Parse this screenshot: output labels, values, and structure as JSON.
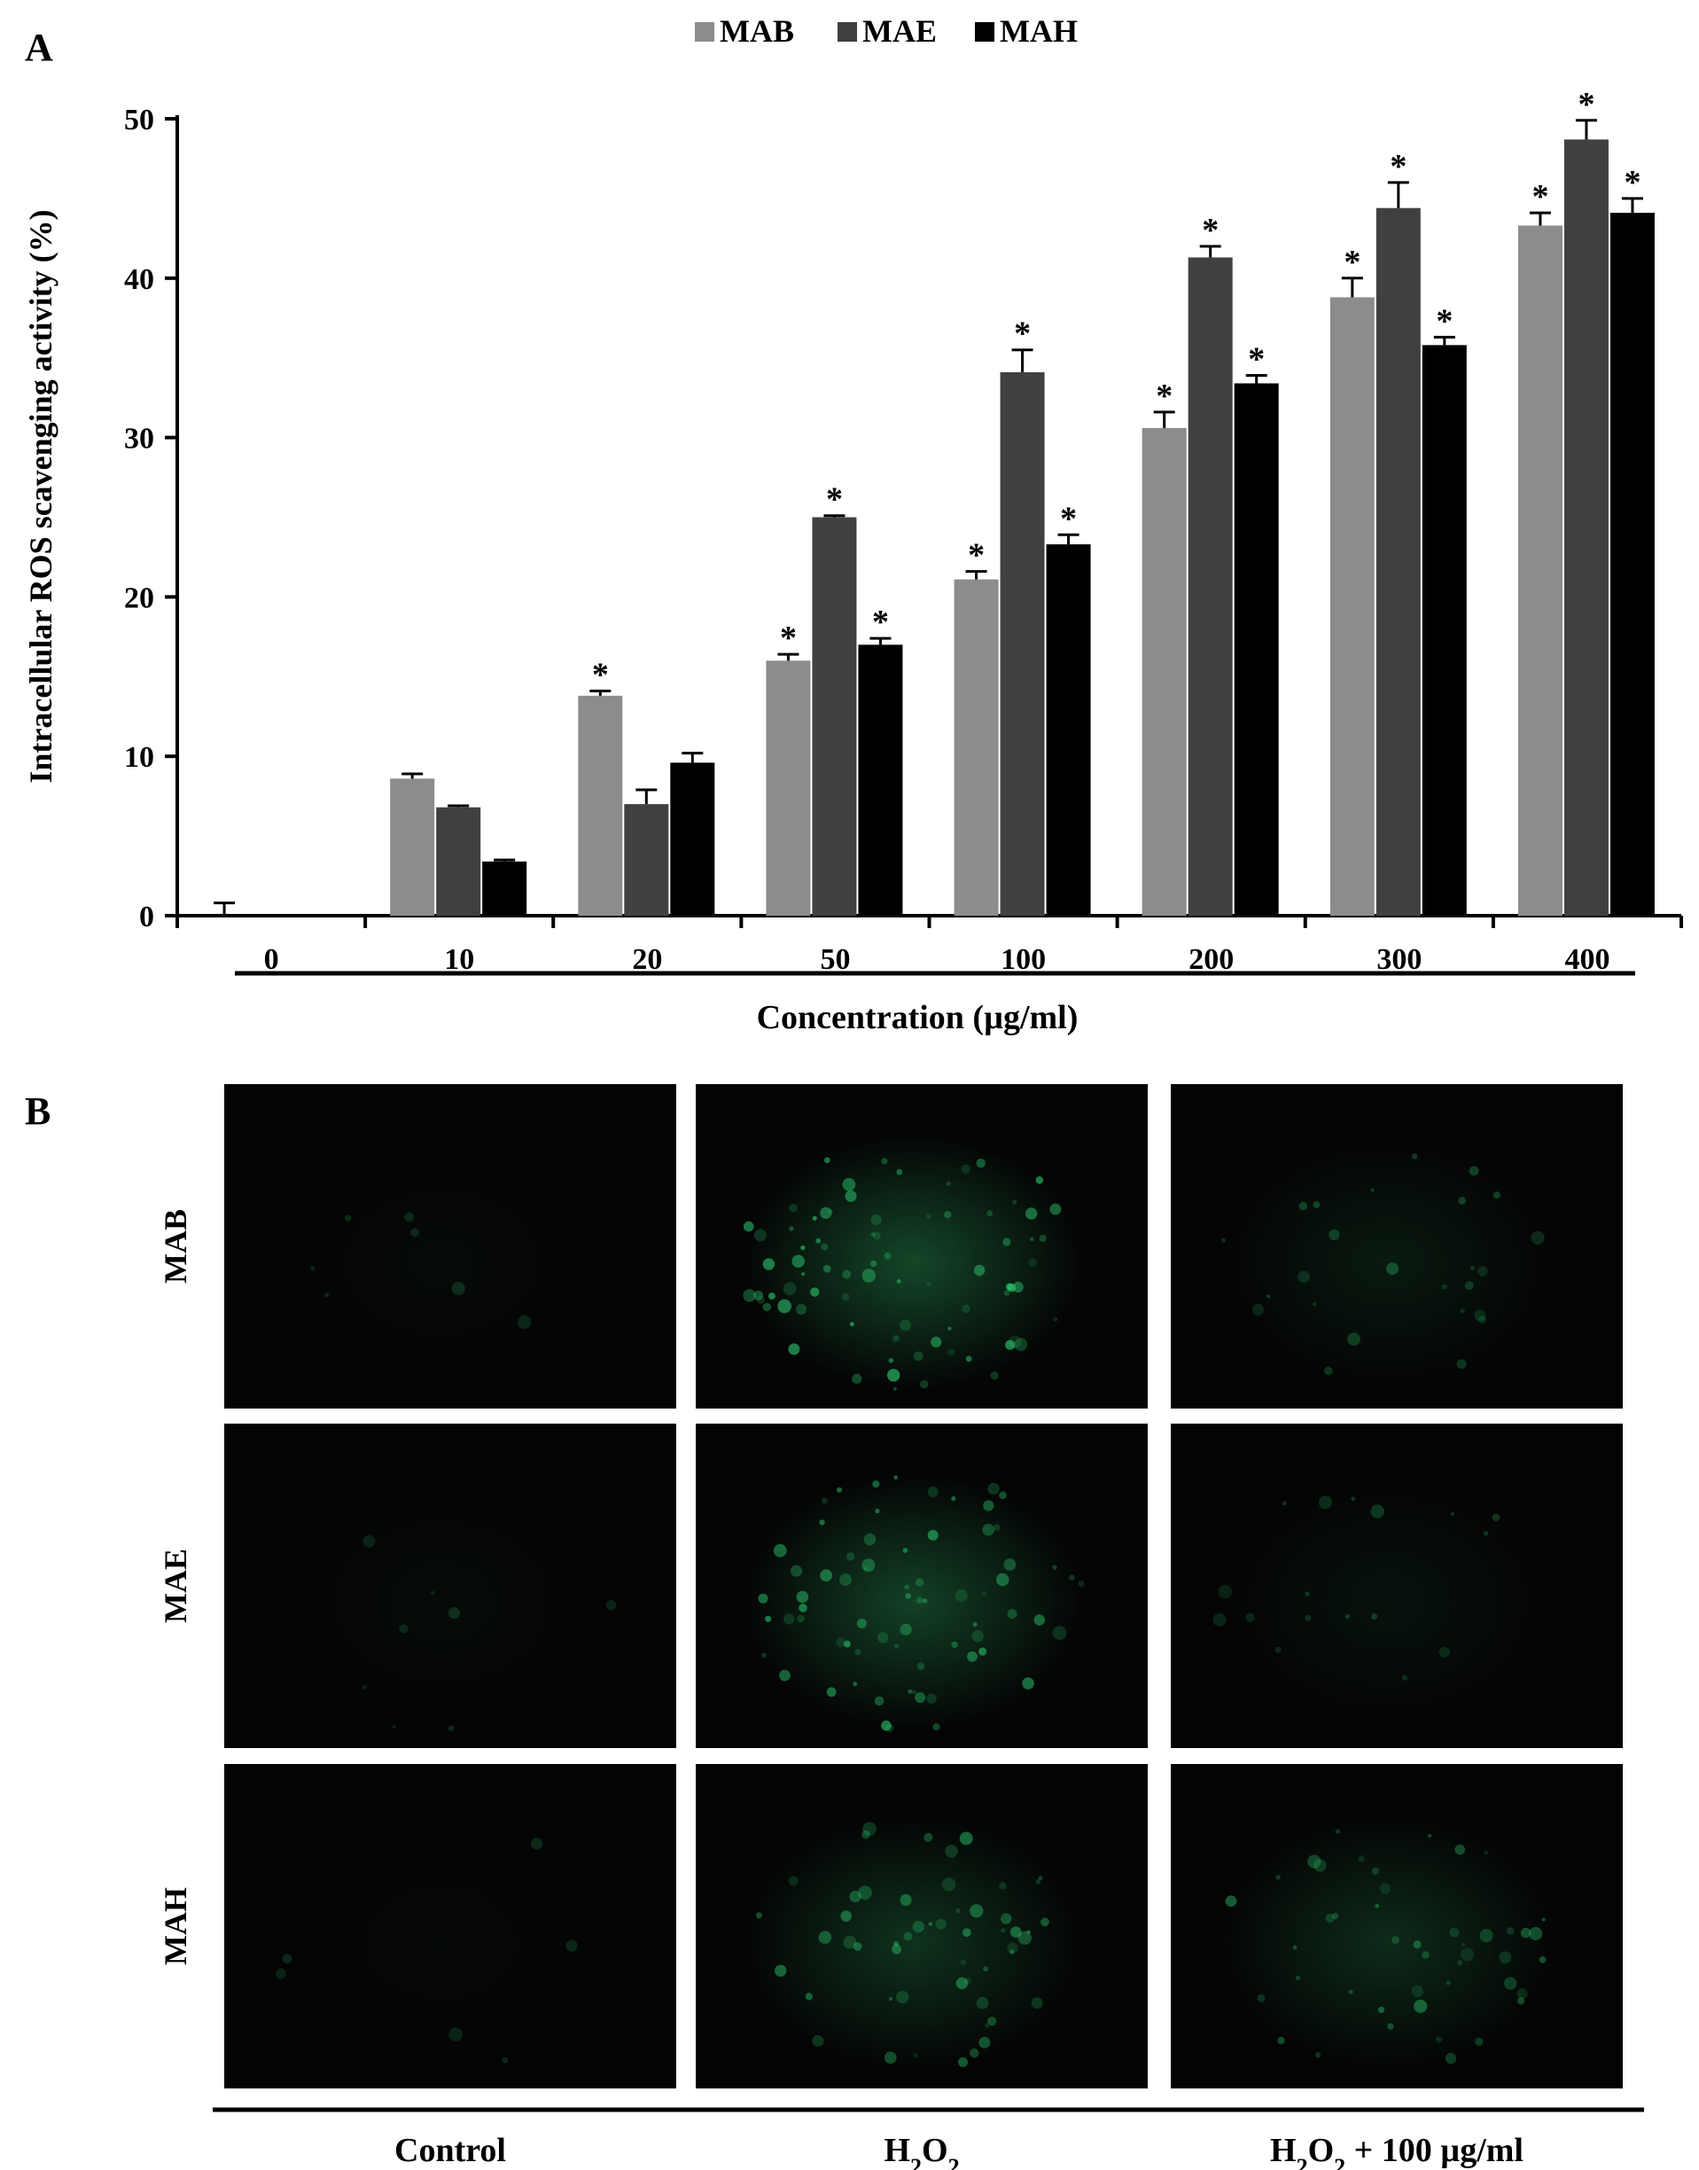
{
  "panel_a_label": "A",
  "panel_b_label": "B",
  "chart_data": {
    "type": "bar",
    "title": "",
    "xlabel": "Concentration (µg/ml)",
    "ylabel": "Intracellular ROS scavenging activity (%)",
    "categories": [
      "0",
      "10",
      "20",
      "50",
      "100",
      "200",
      "300",
      "400"
    ],
    "ylim": [
      0,
      50
    ],
    "yticks": [
      "0",
      "10",
      "20",
      "30",
      "40",
      "50"
    ],
    "legend_position": "top-center",
    "grid": false,
    "significance_marker": "*",
    "series": [
      {
        "name": "MAB",
        "color": "#8c8c8c",
        "values": [
          0,
          8.6,
          13.8,
          16.0,
          21.1,
          30.6,
          38.8,
          43.3
        ],
        "errors": [
          0.8,
          0.3,
          0.3,
          0.4,
          0.5,
          1.0,
          1.2,
          0.8
        ],
        "significant": [
          false,
          false,
          true,
          true,
          true,
          true,
          true,
          true
        ]
      },
      {
        "name": "MAE",
        "color": "#404040",
        "values": [
          0,
          6.8,
          7.0,
          25.0,
          34.1,
          41.3,
          44.4,
          48.7
        ],
        "errors": [
          0,
          0.1,
          0.9,
          0.1,
          1.4,
          0.7,
          1.6,
          1.2
        ],
        "significant": [
          false,
          false,
          false,
          true,
          true,
          true,
          true,
          true
        ]
      },
      {
        "name": "MAH",
        "color": "#000000",
        "values": [
          0,
          3.4,
          9.6,
          17.0,
          23.3,
          33.4,
          35.8,
          44.1
        ],
        "errors": [
          0,
          0.1,
          0.6,
          0.4,
          0.6,
          0.5,
          0.5,
          0.9
        ],
        "significant": [
          false,
          false,
          false,
          true,
          true,
          true,
          true,
          true
        ]
      }
    ]
  },
  "micrographs": {
    "rows": [
      "MAB",
      "MAE",
      "MAH"
    ],
    "columns": [
      {
        "label": "Control",
        "subscript": ""
      },
      {
        "label": "H",
        "subscript": "2",
        "label2": "O",
        "subscript2": "2",
        "suffix": ""
      },
      {
        "label": "H",
        "subscript": "2",
        "label2": "O",
        "subscript2": "2",
        "suffix": " + 100 µg/ml"
      }
    ],
    "fluorescence_color": "#2ecc71",
    "intensity": [
      [
        0.05,
        0.55,
        0.18
      ],
      [
        0.06,
        0.5,
        0.12
      ],
      [
        0.04,
        0.38,
        0.32
      ]
    ]
  }
}
